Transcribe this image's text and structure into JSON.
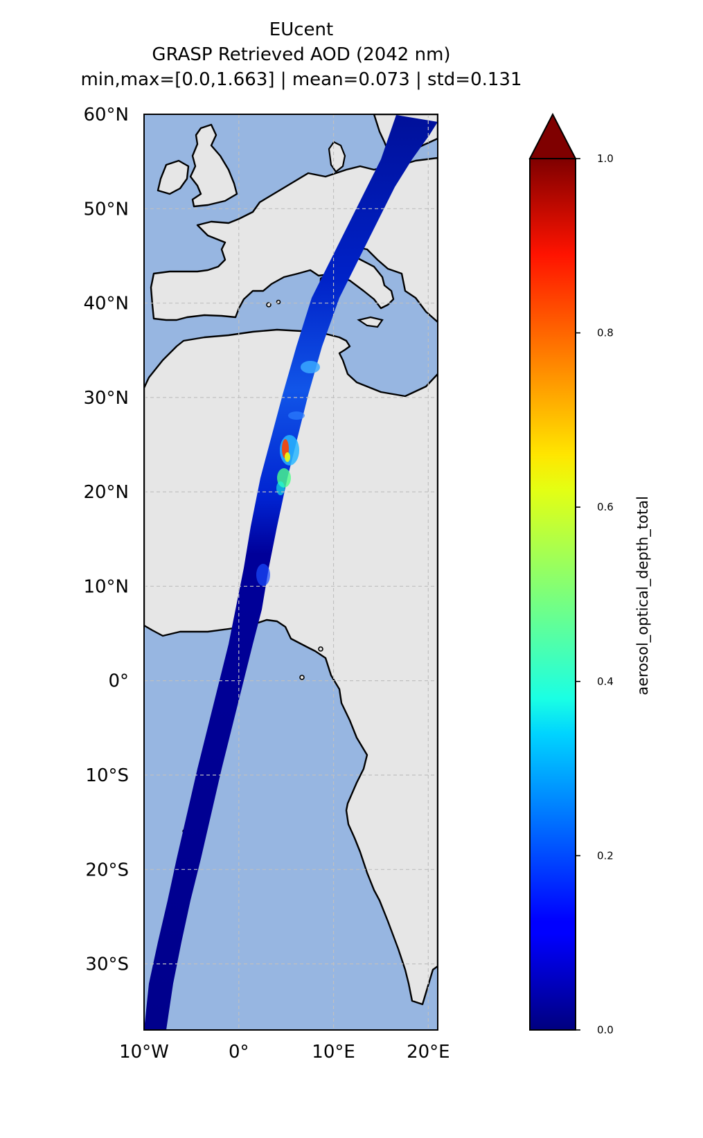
{
  "title": {
    "line1": "EUcent",
    "line2": "GRASP Retrieved AOD (2042 nm)",
    "line3": "min,max=[0.0,1.663] | mean=0.073 | std=0.131"
  },
  "map": {
    "lon_range": [
      -10,
      21
    ],
    "lat_range": [
      -37,
      60
    ],
    "lat_ticks": [
      {
        "value": 60,
        "label": "60°N"
      },
      {
        "value": 50,
        "label": "50°N"
      },
      {
        "value": 40,
        "label": "40°N"
      },
      {
        "value": 30,
        "label": "30°N"
      },
      {
        "value": 20,
        "label": "20°N"
      },
      {
        "value": 10,
        "label": "10°N"
      },
      {
        "value": 0,
        "label": "0°"
      },
      {
        "value": -10,
        "label": "10°S"
      },
      {
        "value": -20,
        "label": "20°S"
      },
      {
        "value": -30,
        "label": "30°S"
      }
    ],
    "lon_ticks": [
      {
        "value": -10,
        "label": "10°W"
      },
      {
        "value": 0,
        "label": "0°"
      },
      {
        "value": 10,
        "label": "10°E"
      },
      {
        "value": 20,
        "label": "20°E"
      }
    ],
    "colors": {
      "ocean": "#97b6e1",
      "land": "#e6e6e6",
      "coast": "#000000",
      "grid": "#c0c0c0"
    }
  },
  "colorbar": {
    "label": "aerosol_optical_depth_total",
    "ticks": [
      "0.0",
      "0.2",
      "0.4",
      "0.6",
      "0.8",
      "1.0"
    ],
    "colormap": "jet",
    "extend": "max"
  }
}
